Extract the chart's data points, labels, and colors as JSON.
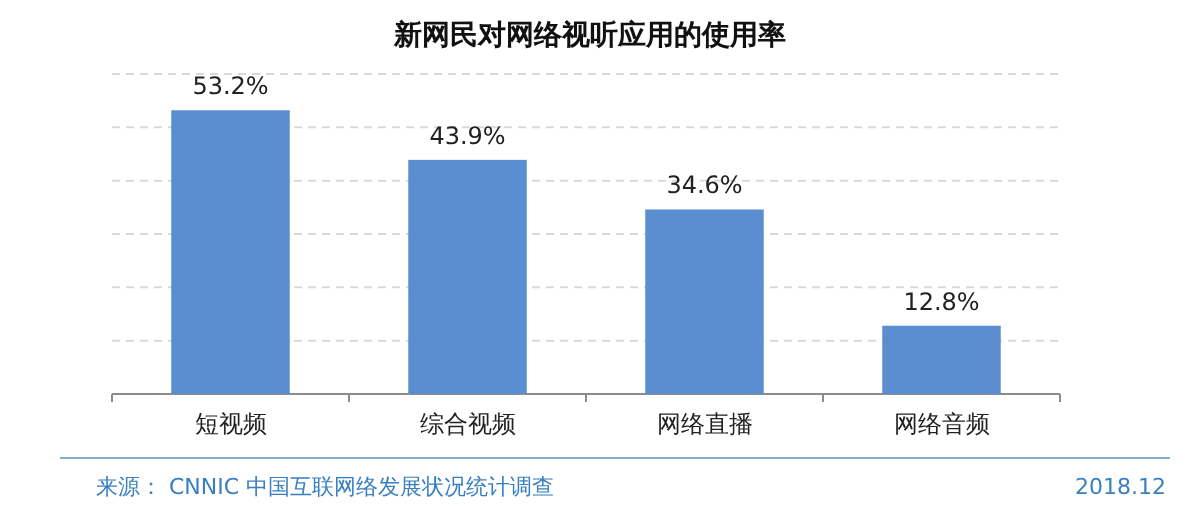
{
  "chart_data": {
    "type": "bar",
    "title": "新网民对网络视听应用的使用率",
    "categories": [
      "短视频",
      "综合视频",
      "网络直播",
      "网络音频"
    ],
    "values": [
      53.2,
      43.9,
      34.6,
      12.8
    ],
    "value_labels": [
      "53.2%",
      "43.9%",
      "34.6%",
      "12.8%"
    ],
    "color": "#5a8ed0",
    "ylim": [
      0,
      60
    ],
    "yticks": [
      {
        "value": 10,
        "label": null
      },
      {
        "value": 20,
        "label": null
      },
      {
        "value": 30,
        "label": null
      },
      {
        "value": 40,
        "label": null
      },
      {
        "value": 50,
        "label": null
      },
      {
        "value": 60,
        "label": null
      }
    ],
    "tick_labels": "x",
    "grid": "y",
    "annotations": [
      "来源： CNNIC 中国互联网络发展状况统计调查",
      "2018.12"
    ]
  }
}
